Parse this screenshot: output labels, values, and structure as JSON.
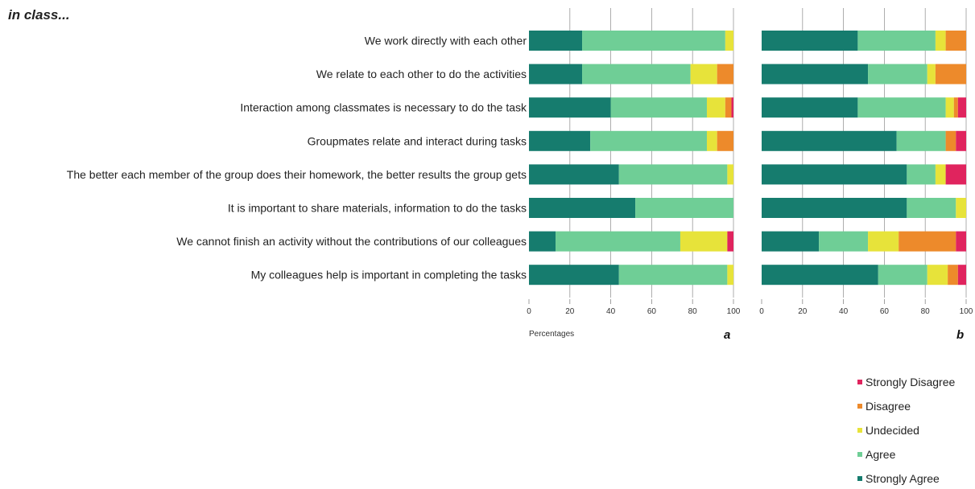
{
  "chart_data": {
    "type": "bar",
    "stacked": true,
    "orientation": "horizontal",
    "title": "in class...",
    "xlabel": "Percentages",
    "xlim": [
      0,
      100
    ],
    "ticks": [
      "0",
      "20",
      "40",
      "60",
      "80",
      "100"
    ],
    "categories": [
      "We work directly with each other",
      "We relate to each other to do the activities",
      "Interaction among classmates is necessary to do the task",
      "Groupmates relate and interact during tasks",
      "The better each member of the group does their homework, the better results the group gets",
      "It is important to share materials, information to do the tasks",
      "We cannot finish an activity without the contributions of our colleagues",
      "My colleagues help is important in completing the tasks"
    ],
    "legend": [
      {
        "name": "Strongly Disagree",
        "color": "#e0245e"
      },
      {
        "name": "Disagree",
        "color": "#ed8a2b"
      },
      {
        "name": "Undecided",
        "color": "#e7e33a"
      },
      {
        "name": "Agree",
        "color": "#6fce96"
      },
      {
        "name": "Strongly Agree",
        "color": "#167c6e"
      }
    ],
    "legend_position": "bottom-right",
    "grid": true,
    "panels": [
      {
        "label": "a",
        "series": [
          {
            "name": "Strongly Agree",
            "values": [
              26,
              26,
              40,
              30,
              44,
              52,
              13,
              44
            ]
          },
          {
            "name": "Agree",
            "values": [
              70,
              53,
              47,
              57,
              53,
              48,
              61,
              53
            ]
          },
          {
            "name": "Undecided",
            "values": [
              4,
              13,
              9,
              5,
              3,
              0,
              23,
              3
            ]
          },
          {
            "name": "Disagree",
            "values": [
              0,
              8,
              3,
              8,
              0,
              0,
              0,
              0
            ]
          },
          {
            "name": "Strongly Disagree",
            "values": [
              0,
              0,
              1,
              0,
              0,
              0,
              3,
              0
            ]
          }
        ]
      },
      {
        "label": "b",
        "series": [
          {
            "name": "Strongly Agree",
            "values": [
              47,
              52,
              47,
              66,
              71,
              71,
              28,
              57
            ]
          },
          {
            "name": "Agree",
            "values": [
              38,
              29,
              43,
              24,
              14,
              24,
              24,
              24
            ]
          },
          {
            "name": "Undecided",
            "values": [
              5,
              4,
              4,
              0,
              5,
              5,
              15,
              10
            ]
          },
          {
            "name": "Disagree",
            "values": [
              10,
              15,
              2,
              5,
              0,
              0,
              28,
              5
            ]
          },
          {
            "name": "Strongly Disagree",
            "values": [
              0,
              0,
              4,
              5,
              10,
              0,
              5,
              4
            ]
          }
        ]
      }
    ]
  }
}
